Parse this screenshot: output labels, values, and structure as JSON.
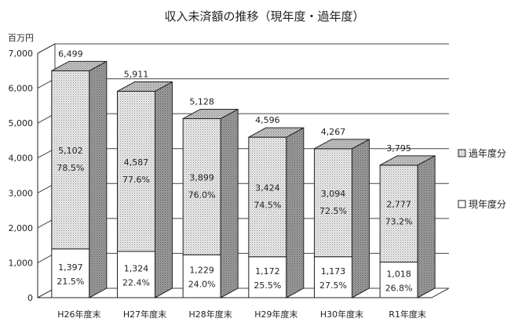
{
  "chart_data": {
    "type": "bar",
    "title": "収入未済額の推移（現年度・過年度）",
    "unit_label": "百万円",
    "ylim": [
      0,
      7000
    ],
    "yticks": [
      "0",
      "1,000",
      "2,000",
      "3,000",
      "4,000",
      "5,000",
      "6,000",
      "7,000"
    ],
    "ytick_values": [
      0,
      1000,
      2000,
      3000,
      4000,
      5000,
      6000,
      7000
    ],
    "grid": true,
    "legend_position": "right",
    "categories": [
      "H26年度末",
      "H27年度末",
      "H28年度末",
      "H29年度末",
      "H30年度末",
      "R1年度末"
    ],
    "totals": [
      6499,
      5911,
      5128,
      4596,
      4267,
      3795
    ],
    "total_labels": [
      "6,499",
      "5,911",
      "5,128",
      "4,596",
      "4,267",
      "3,795"
    ],
    "series": [
      {
        "name": "現年度分",
        "values": [
          1397,
          1324,
          1229,
          1172,
          1173,
          1018
        ],
        "value_labels": [
          "1,397",
          "1,324",
          "1,229",
          "1,172",
          "1,173",
          "1,018"
        ],
        "pct_labels": [
          "21.5%",
          "22.4%",
          "24.0%",
          "25.5%",
          "27.5%",
          "26.8%"
        ],
        "color": "#ffffff"
      },
      {
        "name": "過年度分",
        "values": [
          5102,
          4587,
          3899,
          3424,
          3094,
          2777
        ],
        "value_labels": [
          "5,102",
          "4,587",
          "3,899",
          "3,424",
          "3,094",
          "2,777"
        ],
        "pct_labels": [
          "78.5%",
          "77.6%",
          "76.0%",
          "74.5%",
          "72.5%",
          "73.2%"
        ],
        "color": "#e6e6e6"
      }
    ],
    "side_color": "#9a9a9a",
    "top_color": "#b8b8b8"
  }
}
